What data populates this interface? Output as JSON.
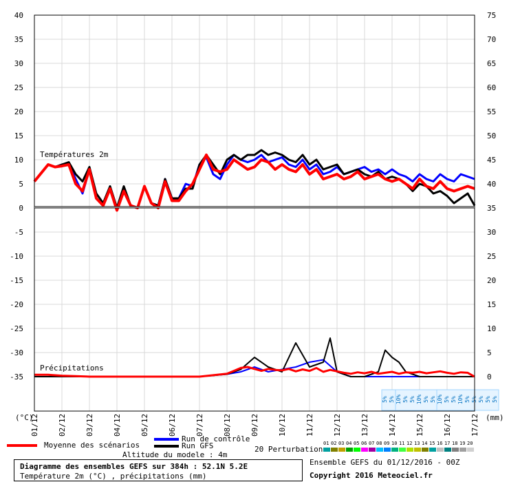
{
  "chart_data": {
    "type": "line",
    "title": "Diagramme des ensembles GEFS sur 384h : 52.1N 5.2E",
    "subtitle": "Température 2m (°C) , précipitations (mm)",
    "left_axis_unit": "(°C)",
    "right_axis_unit": "(mm)",
    "left_ticks": [
      40,
      35,
      30,
      25,
      20,
      15,
      10,
      5,
      0,
      -5,
      -10,
      -15,
      -20,
      -25,
      -30,
      -35
    ],
    "right_ticks": [
      75,
      70,
      65,
      60,
      55,
      50,
      45,
      40,
      35,
      30,
      25,
      20,
      15,
      10,
      5,
      0
    ],
    "x_labels": [
      "01/12",
      "02/12",
      "03/12",
      "04/12",
      "05/12",
      "06/12",
      "07/12",
      "08/12",
      "09/12",
      "10/12",
      "11/12",
      "12/12",
      "13/12",
      "14/12",
      "15/12",
      "16/12",
      "17/12"
    ],
    "x_domain": [
      0,
      16
    ],
    "temp_ylim": [
      -35,
      40
    ],
    "precip_ylim": [
      0,
      75
    ],
    "section_labels": {
      "temperature": "Températures 2m",
      "precipitation": "Précipitations"
    },
    "temperature_series": [
      {
        "name": "Moyenne des scénarios",
        "color": "#ff0000",
        "x": [
          0,
          0.5,
          0.75,
          1,
          1.25,
          1.5,
          1.75,
          2,
          2.25,
          2.5,
          2.75,
          3,
          3.25,
          3.5,
          3.75,
          4,
          4.25,
          4.5,
          4.75,
          5,
          5.25,
          5.5,
          5.75,
          6,
          6.25,
          6.5,
          6.75,
          7,
          7.25,
          7.5,
          7.75,
          8,
          8.25,
          8.5,
          8.75,
          9,
          9.25,
          9.5,
          9.75,
          10,
          10.25,
          10.5,
          10.75,
          11,
          11.25,
          11.5,
          11.75,
          12,
          12.25,
          12.5,
          12.75,
          13,
          13.25,
          13.5,
          13.75,
          14,
          14.25,
          14.5,
          14.75,
          15,
          15.25,
          15.5,
          15.75,
          16
        ],
        "y": [
          5.5,
          9,
          8.5,
          8.7,
          9,
          5,
          3.5,
          8,
          2,
          0.5,
          4,
          -0.5,
          3.5,
          0.5,
          0,
          4.5,
          1,
          0,
          5.5,
          1.5,
          1.5,
          3.5,
          5,
          8,
          11,
          8,
          7.5,
          8,
          10,
          9,
          8,
          8.5,
          10,
          9.5,
          8,
          9,
          8,
          7.5,
          9,
          7,
          8,
          6,
          6.5,
          7,
          6,
          6.5,
          7.5,
          6,
          6.5,
          7,
          6,
          5.5,
          6,
          5,
          4,
          6,
          4.5,
          4,
          5.5,
          4,
          3.5,
          4,
          4.5,
          4
        ]
      },
      {
        "name": "Run de contrôle",
        "color": "#0000ff",
        "x": [
          0,
          0.5,
          0.75,
          1,
          1.25,
          1.5,
          1.75,
          2,
          2.25,
          2.5,
          2.75,
          3,
          3.25,
          3.5,
          3.75,
          4,
          4.25,
          4.5,
          4.75,
          5,
          5.25,
          5.5,
          5.75,
          6,
          6.25,
          6.5,
          6.75,
          7,
          7.25,
          7.5,
          7.75,
          8,
          8.25,
          8.5,
          8.75,
          9,
          9.25,
          9.5,
          9.75,
          10,
          10.25,
          10.5,
          10.75,
          11,
          11.25,
          11.5,
          11.75,
          12,
          12.25,
          12.5,
          12.75,
          13,
          13.25,
          13.5,
          13.75,
          14,
          14.25,
          14.5,
          14.75,
          15,
          15.25,
          15.5,
          15.75,
          16
        ],
        "y": [
          5.5,
          9,
          8.5,
          9,
          9.2,
          6,
          3,
          8,
          2,
          0.5,
          4,
          -0.5,
          4,
          0.5,
          0,
          4.5,
          1,
          0.5,
          6,
          2,
          2,
          5,
          4.5,
          9,
          10.5,
          7,
          6,
          9,
          11,
          10,
          9.5,
          10,
          11,
          9.5,
          10,
          10.5,
          9,
          8.5,
          10,
          8,
          9,
          7,
          7.5,
          8.5,
          7,
          7.5,
          8,
          8.5,
          7.5,
          8,
          7,
          8,
          7,
          6.5,
          5.5,
          7,
          6,
          5.5,
          7,
          6,
          5.5,
          7,
          6.5,
          6
        ]
      },
      {
        "name": "Run GFS",
        "color": "#000000",
        "x": [
          0,
          0.5,
          0.75,
          1,
          1.25,
          1.5,
          1.75,
          2,
          2.25,
          2.5,
          2.75,
          3,
          3.25,
          3.5,
          3.75,
          4,
          4.25,
          4.5,
          4.75,
          5,
          5.25,
          5.5,
          5.75,
          6,
          6.25,
          6.5,
          6.75,
          7,
          7.25,
          7.5,
          7.75,
          8,
          8.25,
          8.5,
          8.75,
          9,
          9.25,
          9.5,
          9.75,
          10,
          10.25,
          10.5,
          10.75,
          11,
          11.25,
          11.5,
          11.75,
          12,
          12.25,
          12.5,
          12.75,
          13,
          13.25,
          13.5,
          13.75,
          14,
          14.25,
          14.5,
          14.75,
          15,
          15.25,
          15.5,
          15.75,
          16
        ],
        "y": [
          5.5,
          9,
          8.5,
          9,
          9.5,
          7,
          5.5,
          8.5,
          3,
          1,
          4.5,
          0,
          4.5,
          0.5,
          0,
          4.5,
          1,
          0.5,
          6,
          2,
          2,
          4,
          4,
          9,
          11,
          9,
          7,
          10,
          11,
          10,
          11,
          11,
          12,
          11,
          11.5,
          11,
          10,
          9.5,
          11,
          9,
          10,
          8,
          8.5,
          9,
          7,
          7.5,
          8,
          7,
          6.5,
          7.5,
          6,
          6.5,
          6,
          5,
          3.5,
          5,
          4.5,
          3,
          3.5,
          2.5,
          1,
          2,
          3,
          0.5
        ]
      }
    ],
    "precipitation_series": [
      {
        "name": "Moyenne des scénarios",
        "color": "#ff0000",
        "x": [
          0,
          0.5,
          1,
          1.5,
          2,
          3,
          4,
          5,
          5.5,
          6,
          6.5,
          7,
          7.25,
          7.5,
          7.75,
          8,
          8.25,
          8.5,
          8.75,
          9,
          9.25,
          9.5,
          9.75,
          10,
          10.25,
          10.5,
          10.75,
          11,
          11.25,
          11.5,
          11.75,
          12,
          12.25,
          12.5,
          12.75,
          13,
          13.25,
          13.5,
          13.75,
          14,
          14.25,
          14.5,
          14.75,
          15,
          15.25,
          15.5,
          15.75,
          16
        ],
        "y": [
          0.4,
          0.4,
          0.2,
          0.1,
          0,
          0,
          0,
          0,
          0,
          0,
          0.3,
          0.6,
          1.2,
          1.8,
          2,
          1.6,
          1.2,
          1.6,
          1.4,
          1.3,
          1.6,
          1.1,
          1.5,
          1.2,
          1.8,
          1.0,
          1.4,
          1.1,
          0.8,
          0.6,
          0.9,
          0.7,
          1.0,
          0.6,
          0.8,
          1.0,
          0.6,
          0.9,
          0.8,
          1.0,
          0.7,
          0.9,
          1.1,
          0.8,
          0.6,
          0.9,
          0.8,
          0
        ]
      },
      {
        "name": "Run de contrôle",
        "color": "#0000ff",
        "x": [
          0,
          2,
          4,
          6,
          7,
          7.5,
          8,
          8.5,
          9,
          9.5,
          10,
          10.5,
          11,
          11.5,
          12,
          13,
          14,
          15,
          16
        ],
        "y": [
          0,
          0,
          0,
          0,
          0.5,
          1,
          2,
          1,
          1.5,
          2,
          3,
          3.5,
          1,
          0,
          0,
          0,
          0,
          0,
          0
        ]
      },
      {
        "name": "Run GFS",
        "color": "#000000",
        "x": [
          0,
          2,
          4,
          6,
          7,
          7.5,
          8,
          8.5,
          9,
          9.5,
          10,
          10.5,
          10.75,
          11,
          11.5,
          12,
          12.5,
          12.75,
          13,
          13.25,
          13.5,
          14,
          15,
          16
        ],
        "y": [
          0,
          0,
          0,
          0,
          0.5,
          1.5,
          4,
          2,
          1,
          7,
          2,
          3,
          8,
          1,
          0,
          0,
          1,
          5.5,
          4,
          3,
          1,
          0,
          0,
          0
        ]
      }
    ],
    "legend": {
      "mean": "Moyenne des scénarios",
      "control": "Run de contrôle",
      "gfs": "Run GFS",
      "perturbations": "20 Perturbations",
      "perturbation_ids": [
        "01",
        "02",
        "03",
        "04",
        "05",
        "06",
        "07",
        "08",
        "09",
        "10",
        "11",
        "12",
        "13",
        "14",
        "15",
        "16",
        "17",
        "18",
        "19",
        "20"
      ],
      "perturbation_colors": [
        "#00a0a0",
        "#808000",
        "#c0a000",
        "#00a000",
        "#00ff00",
        "#ff00ff",
        "#a000a0",
        "#00c0ff",
        "#0080ff",
        "#00b080",
        "#40ff40",
        "#b0e000",
        "#c0c000",
        "#808000",
        "#00a0a0",
        "#c0c0c0",
        "#008080",
        "#808080",
        "#a0a0a0",
        "#d0d0d0"
      ]
    },
    "snow_markers": [
      {
        "x": 13.0,
        "pct": [
          "5%",
          "5%",
          "10%"
        ]
      },
      {
        "x": 14.0,
        "pct": [
          "10%",
          "5%",
          "5%",
          "10%",
          "5%",
          "5%",
          "10%"
        ]
      },
      {
        "x": 15.75,
        "pct": [
          "10%",
          "5%",
          "5%",
          "10%",
          "5%",
          "5%",
          "5%",
          "5%",
          "5%"
        ]
      }
    ],
    "altitude_label": "Altitude du modele : 4m",
    "run_info": "Ensemble GEFS du 01/12/2016 - 00Z",
    "copyright": "Copyright 2016 Meteociel.fr"
  }
}
